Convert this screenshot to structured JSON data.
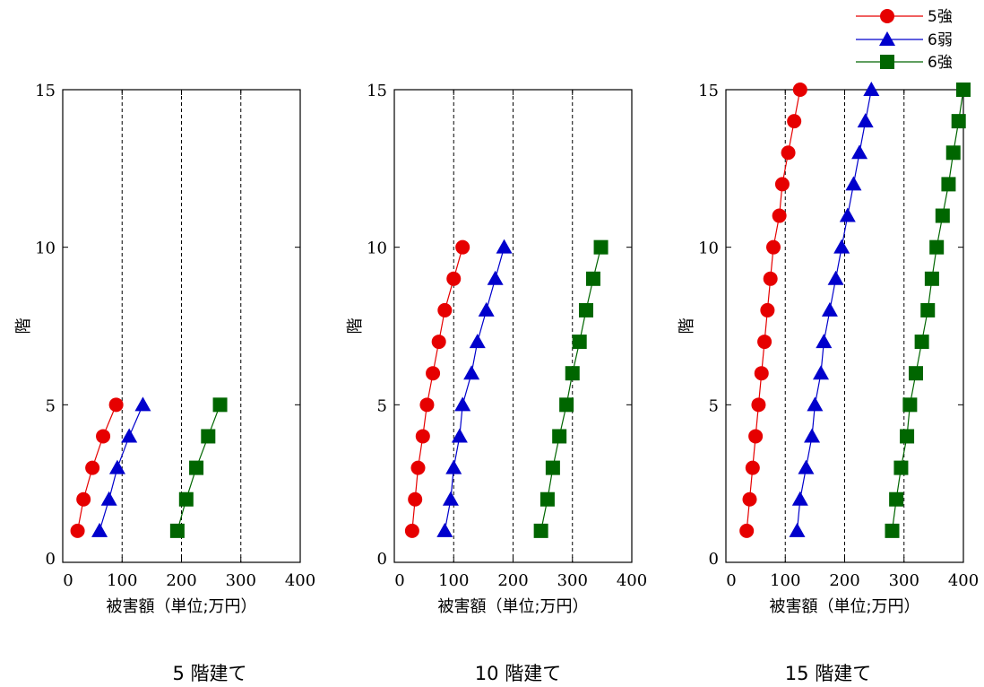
{
  "legend": [
    {
      "label": "5強",
      "color": "#e60000",
      "marker": "circle"
    },
    {
      "label": "6弱",
      "color": "#0000cc",
      "marker": "triangle"
    },
    {
      "label": "6強",
      "color": "#006600",
      "marker": "square"
    }
  ],
  "chart_data": [
    {
      "type": "line",
      "caption": "5 階建て",
      "xlabel": "被害額（単位;万円）",
      "ylabel": "階",
      "xlim": [
        0,
        400
      ],
      "ylim": [
        0,
        15
      ],
      "xticks": [
        0,
        100,
        200,
        300,
        400
      ],
      "yticks": [
        0,
        5,
        10,
        15
      ],
      "gridlines_x": [
        100,
        200,
        300
      ],
      "series": [
        {
          "name": "5強",
          "x": [
            25,
            35,
            50,
            68,
            90
          ],
          "y": [
            1,
            2,
            3,
            4,
            5
          ]
        },
        {
          "name": "6弱",
          "x": [
            62,
            78,
            92,
            112,
            135
          ],
          "y": [
            1,
            2,
            3,
            4,
            5
          ]
        },
        {
          "name": "6強",
          "x": [
            193,
            208,
            225,
            245,
            265
          ],
          "y": [
            1,
            2,
            3,
            4,
            5
          ]
        }
      ]
    },
    {
      "type": "line",
      "caption": "10 階建て",
      "xlabel": "被害額（単位;万円）",
      "ylabel": "階",
      "xlim": [
        0,
        400
      ],
      "ylim": [
        0,
        15
      ],
      "xticks": [
        0,
        100,
        200,
        300,
        400
      ],
      "yticks": [
        0,
        5,
        10,
        15
      ],
      "gridlines_x": [
        100,
        200,
        300
      ],
      "series": [
        {
          "name": "5強",
          "x": [
            30,
            35,
            40,
            48,
            55,
            65,
            75,
            85,
            100,
            115
          ],
          "y": [
            1,
            2,
            3,
            4,
            5,
            6,
            7,
            8,
            9,
            10
          ]
        },
        {
          "name": "6弱",
          "x": [
            85,
            95,
            100,
            110,
            115,
            130,
            140,
            155,
            170,
            185
          ],
          "y": [
            1,
            2,
            3,
            4,
            5,
            6,
            7,
            8,
            9,
            10
          ]
        },
        {
          "name": "6強",
          "x": [
            247,
            258,
            267,
            278,
            290,
            300,
            312,
            323,
            335,
            348
          ],
          "y": [
            1,
            2,
            3,
            4,
            5,
            6,
            7,
            8,
            9,
            10
          ]
        }
      ]
    },
    {
      "type": "line",
      "caption": "15 階建て",
      "xlabel": "被害額（単位;万円）",
      "ylabel": "階",
      "xlim": [
        0,
        400
      ],
      "ylim": [
        0,
        15
      ],
      "xticks": [
        0,
        100,
        200,
        300,
        400
      ],
      "yticks": [
        0,
        5,
        10,
        15
      ],
      "gridlines_x": [
        100,
        200,
        300
      ],
      "series": [
        {
          "name": "5強",
          "x": [
            35,
            40,
            45,
            50,
            55,
            60,
            65,
            70,
            75,
            80,
            90,
            95,
            105,
            115,
            125
          ],
          "y": [
            1,
            2,
            3,
            4,
            5,
            6,
            7,
            8,
            9,
            10,
            11,
            12,
            13,
            14,
            15
          ]
        },
        {
          "name": "6弱",
          "x": [
            120,
            125,
            135,
            145,
            150,
            160,
            165,
            175,
            185,
            195,
            205,
            215,
            225,
            235,
            245
          ],
          "y": [
            1,
            2,
            3,
            4,
            5,
            6,
            7,
            8,
            9,
            10,
            11,
            12,
            13,
            14,
            15
          ]
        },
        {
          "name": "6強",
          "x": [
            280,
            287,
            295,
            305,
            310,
            320,
            330,
            340,
            347,
            355,
            365,
            375,
            383,
            392,
            400
          ],
          "y": [
            1,
            2,
            3,
            4,
            5,
            6,
            7,
            8,
            9,
            10,
            11,
            12,
            13,
            14,
            15
          ]
        }
      ]
    }
  ]
}
